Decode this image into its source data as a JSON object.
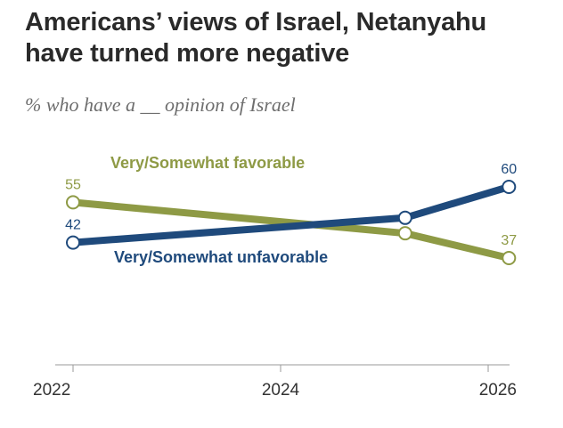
{
  "chart_data": {
    "type": "line",
    "title": "Americans’ views of Israel, Netanyahu have turned more negative",
    "subtitle": "% who have a __ opinion of Israel",
    "xlabel": "",
    "ylabel": "",
    "xlim": [
      2022,
      2026
    ],
    "ylim": [
      0,
      70
    ],
    "x_ticks": [
      "2022",
      "2024",
      "2026"
    ],
    "grid": false,
    "series": [
      {
        "name": "Very/Somewhat favorable",
        "color": "#8e9a45",
        "points": [
          {
            "x": 2022,
            "y": 55,
            "label": "55"
          },
          {
            "x": 2025.2,
            "y": 45,
            "label": ""
          },
          {
            "x": 2026.2,
            "y": 37,
            "label": "37"
          }
        ]
      },
      {
        "name": "Very/Somewhat unfavorable",
        "color": "#1f4a7c",
        "points": [
          {
            "x": 2022,
            "y": 42,
            "label": "42"
          },
          {
            "x": 2025.2,
            "y": 50,
            "label": ""
          },
          {
            "x": 2026.2,
            "y": 60,
            "label": "60"
          }
        ]
      }
    ]
  }
}
